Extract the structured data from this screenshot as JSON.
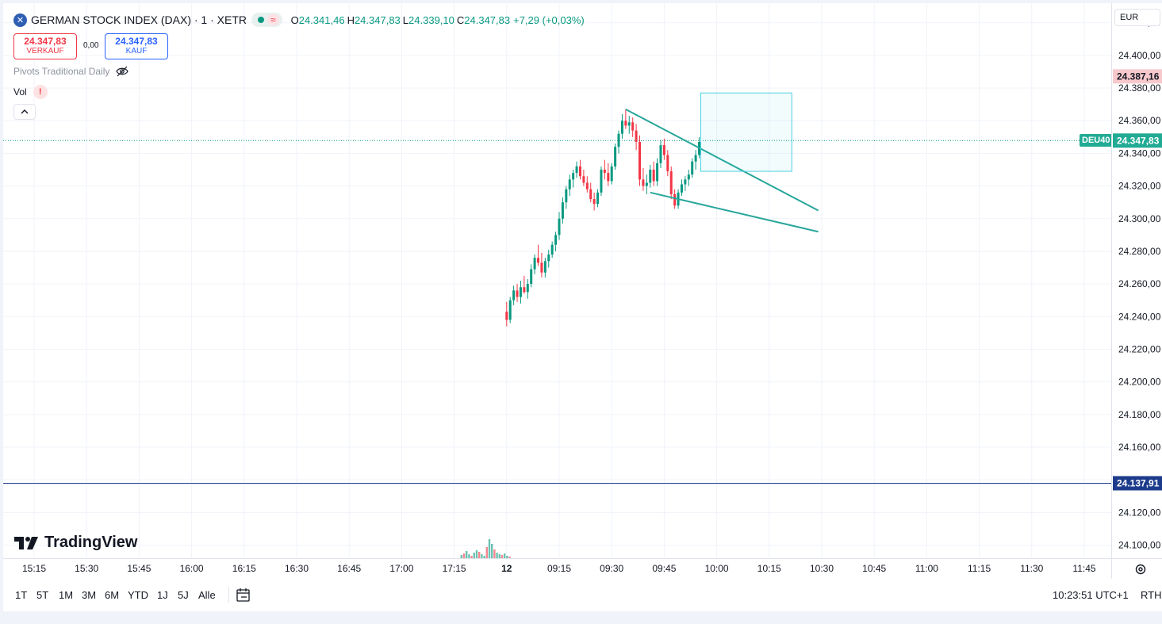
{
  "header": {
    "logo_glyph": "✕",
    "symbol_title": "GERMAN STOCK INDEX (DAX) · 1 · XETR",
    "status_symbol": "≈",
    "ohlc": {
      "o_label": "O",
      "o": "24.341,46",
      "h_label": "H",
      "h": "24.347,83",
      "l_label": "L",
      "l": "24.339,10",
      "c_label": "C",
      "c": "24.347,83",
      "change": "+7,29 (+0,03%)"
    }
  },
  "trade": {
    "sell_price": "24.347,83",
    "sell_label": "VERKAUF",
    "spread": "0,00",
    "buy_price": "24.347,83",
    "buy_label": "KAUF"
  },
  "indicators": {
    "pivots": "Pivots Traditional Daily",
    "vol": "Vol",
    "warning": "!"
  },
  "watermark": "TradingView",
  "currency": "EUR",
  "symbol_tag": "DEU40",
  "price_scale": {
    "ticks": [
      {
        "value": 24420,
        "label": "24.420,00"
      },
      {
        "value": 24400,
        "label": "24.400,00"
      },
      {
        "value": 24380,
        "label": "24.380,00"
      },
      {
        "value": 24360,
        "label": "24.360,00"
      },
      {
        "value": 24340,
        "label": "24.340,00"
      },
      {
        "value": 24320,
        "label": "24.320,00"
      },
      {
        "value": 24300,
        "label": "24.300,00"
      },
      {
        "value": 24280,
        "label": "24.280,00"
      },
      {
        "value": 24260,
        "label": "24.260,00"
      },
      {
        "value": 24240,
        "label": "24.240,00"
      },
      {
        "value": 24220,
        "label": "24.220,00"
      },
      {
        "value": 24200,
        "label": "24.200,00"
      },
      {
        "value": 24180,
        "label": "24.180,00"
      },
      {
        "value": 24160,
        "label": "24.160,00"
      },
      {
        "value": 24140,
        "label": "24.140,00"
      },
      {
        "value": 24120,
        "label": "24.120,00"
      },
      {
        "value": 24100,
        "label": "24.100,00"
      }
    ],
    "tags": [
      {
        "value": 24387.16,
        "label": "24.387,16",
        "bg": "#f7c9cd",
        "fg": "#131722"
      },
      {
        "value": 24347.83,
        "label": "24.347,83",
        "bg": "#22ab94",
        "fg": "#ffffff"
      },
      {
        "value": 24137.91,
        "label": "24.137,91",
        "bg": "#1d3b8b",
        "fg": "#ffffff"
      }
    ]
  },
  "time_axis": [
    {
      "index": 0,
      "label": "15:15"
    },
    {
      "index": 1,
      "label": "15:30"
    },
    {
      "index": 2,
      "label": "15:45"
    },
    {
      "index": 3,
      "label": "16:00"
    },
    {
      "index": 4,
      "label": "16:15"
    },
    {
      "index": 5,
      "label": "16:30"
    },
    {
      "index": 6,
      "label": "16:45"
    },
    {
      "index": 7,
      "label": "17:00"
    },
    {
      "index": 8,
      "label": "17:15"
    },
    {
      "index": 9,
      "label": "12"
    },
    {
      "index": 10,
      "label": "09:15"
    },
    {
      "index": 11,
      "label": "09:30"
    },
    {
      "index": 12,
      "label": "09:45"
    },
    {
      "index": 13,
      "label": "10:00"
    },
    {
      "index": 14,
      "label": "10:15"
    },
    {
      "index": 15,
      "label": "10:30"
    },
    {
      "index": 16,
      "label": "10:45"
    },
    {
      "index": 17,
      "label": "11:00"
    },
    {
      "index": 18,
      "label": "11:15"
    },
    {
      "index": 19,
      "label": "11:30"
    },
    {
      "index": 20,
      "label": "11:45"
    }
  ],
  "bottom": {
    "ranges": [
      "1T",
      "5T",
      "1M",
      "3M",
      "6M",
      "YTD",
      "1J",
      "5J",
      "Alle"
    ],
    "clock": "10:23:51 UTC+1",
    "session": "RTH"
  },
  "colors": {
    "up": "#089981",
    "down": "#f23645",
    "drawing": "#26a69a",
    "pivot_line": "#1d3b8b",
    "grid": "#f0f3fa"
  },
  "chart_data": {
    "type": "candlestick",
    "x_unit": "minutes",
    "y_range": [
      24092,
      24432
    ],
    "pivot_level": 24137.91,
    "last_price": 24347.83,
    "candles": [
      {
        "t": "09:00",
        "o": 24243,
        "h": 24249,
        "l": 24234,
        "c": 24238
      },
      {
        "t": "09:01",
        "o": 24238,
        "h": 24252,
        "l": 24236,
        "c": 24250
      },
      {
        "t": "09:02",
        "o": 24250,
        "h": 24259,
        "l": 24247,
        "c": 24256
      },
      {
        "t": "09:03",
        "o": 24256,
        "h": 24260,
        "l": 24249,
        "c": 24252
      },
      {
        "t": "09:04",
        "o": 24252,
        "h": 24262,
        "l": 24248,
        "c": 24258
      },
      {
        "t": "09:05",
        "o": 24258,
        "h": 24265,
        "l": 24254,
        "c": 24255
      },
      {
        "t": "09:06",
        "o": 24255,
        "h": 24263,
        "l": 24251,
        "c": 24260
      },
      {
        "t": "09:07",
        "o": 24260,
        "h": 24272,
        "l": 24258,
        "c": 24269
      },
      {
        "t": "09:08",
        "o": 24269,
        "h": 24278,
        "l": 24266,
        "c": 24276
      },
      {
        "t": "09:09",
        "o": 24276,
        "h": 24284,
        "l": 24271,
        "c": 24273
      },
      {
        "t": "09:10",
        "o": 24273,
        "h": 24279,
        "l": 24264,
        "c": 24267
      },
      {
        "t": "09:11",
        "o": 24267,
        "h": 24276,
        "l": 24264,
        "c": 24274
      },
      {
        "t": "09:12",
        "o": 24274,
        "h": 24281,
        "l": 24270,
        "c": 24278
      },
      {
        "t": "09:13",
        "o": 24278,
        "h": 24286,
        "l": 24276,
        "c": 24284
      },
      {
        "t": "09:14",
        "o": 24284,
        "h": 24292,
        "l": 24280,
        "c": 24290
      },
      {
        "t": "09:15",
        "o": 24290,
        "h": 24304,
        "l": 24287,
        "c": 24300
      },
      {
        "t": "09:16",
        "o": 24300,
        "h": 24313,
        "l": 24297,
        "c": 24310
      },
      {
        "t": "09:17",
        "o": 24310,
        "h": 24320,
        "l": 24306,
        "c": 24318
      },
      {
        "t": "09:18",
        "o": 24318,
        "h": 24327,
        "l": 24314,
        "c": 24324
      },
      {
        "t": "09:19",
        "o": 24324,
        "h": 24330,
        "l": 24319,
        "c": 24328
      },
      {
        "t": "09:20",
        "o": 24328,
        "h": 24335,
        "l": 24325,
        "c": 24332
      },
      {
        "t": "09:21",
        "o": 24332,
        "h": 24336,
        "l": 24324,
        "c": 24326
      },
      {
        "t": "09:22",
        "o": 24326,
        "h": 24330,
        "l": 24320,
        "c": 24322
      },
      {
        "t": "09:23",
        "o": 24322,
        "h": 24326,
        "l": 24316,
        "c": 24318
      },
      {
        "t": "09:24",
        "o": 24318,
        "h": 24322,
        "l": 24310,
        "c": 24312
      },
      {
        "t": "09:25",
        "o": 24312,
        "h": 24316,
        "l": 24305,
        "c": 24309
      },
      {
        "t": "09:26",
        "o": 24309,
        "h": 24318,
        "l": 24307,
        "c": 24316
      },
      {
        "t": "09:27",
        "o": 24316,
        "h": 24332,
        "l": 24314,
        "c": 24330
      },
      {
        "t": "09:28",
        "o": 24330,
        "h": 24336,
        "l": 24324,
        "c": 24328
      },
      {
        "t": "09:29",
        "o": 24328,
        "h": 24334,
        "l": 24320,
        "c": 24323
      },
      {
        "t": "09:30",
        "o": 24323,
        "h": 24334,
        "l": 24321,
        "c": 24332
      },
      {
        "t": "09:31",
        "o": 24332,
        "h": 24346,
        "l": 24330,
        "c": 24344
      },
      {
        "t": "09:32",
        "o": 24344,
        "h": 24354,
        "l": 24340,
        "c": 24352
      },
      {
        "t": "09:33",
        "o": 24352,
        "h": 24364,
        "l": 24349,
        "c": 24360
      },
      {
        "t": "09:34",
        "o": 24360,
        "h": 24367,
        "l": 24355,
        "c": 24357
      },
      {
        "t": "09:35",
        "o": 24357,
        "h": 24363,
        "l": 24352,
        "c": 24359
      },
      {
        "t": "09:36",
        "o": 24359,
        "h": 24362,
        "l": 24350,
        "c": 24354
      },
      {
        "t": "09:37",
        "o": 24354,
        "h": 24358,
        "l": 24342,
        "c": 24347
      },
      {
        "t": "09:38",
        "o": 24347,
        "h": 24351,
        "l": 24320,
        "c": 24324
      },
      {
        "t": "09:39",
        "o": 24324,
        "h": 24331,
        "l": 24317,
        "c": 24320
      },
      {
        "t": "09:40",
        "o": 24320,
        "h": 24327,
        "l": 24315,
        "c": 24322
      },
      {
        "t": "09:41",
        "o": 24322,
        "h": 24333,
        "l": 24319,
        "c": 24330
      },
      {
        "t": "09:42",
        "o": 24330,
        "h": 24335,
        "l": 24320,
        "c": 24323
      },
      {
        "t": "09:43",
        "o": 24323,
        "h": 24337,
        "l": 24320,
        "c": 24334
      },
      {
        "t": "09:44",
        "o": 24334,
        "h": 24348,
        "l": 24331,
        "c": 24345
      },
      {
        "t": "09:45",
        "o": 24345,
        "h": 24349,
        "l": 24336,
        "c": 24339
      },
      {
        "t": "09:46",
        "o": 24339,
        "h": 24342,
        "l": 24326,
        "c": 24329
      },
      {
        "t": "09:47",
        "o": 24329,
        "h": 24332,
        "l": 24312,
        "c": 24315
      },
      {
        "t": "09:48",
        "o": 24315,
        "h": 24318,
        "l": 24306,
        "c": 24308
      },
      {
        "t": "09:49",
        "o": 24308,
        "h": 24318,
        "l": 24306,
        "c": 24316
      },
      {
        "t": "09:50",
        "o": 24316,
        "h": 24324,
        "l": 24314,
        "c": 24321
      },
      {
        "t": "09:51",
        "o": 24321,
        "h": 24326,
        "l": 24317,
        "c": 24324
      },
      {
        "t": "09:52",
        "o": 24324,
        "h": 24330,
        "l": 24320,
        "c": 24327
      },
      {
        "t": "09:53",
        "o": 24327,
        "h": 24337,
        "l": 24325,
        "c": 24335
      },
      {
        "t": "09:54",
        "o": 24335,
        "h": 24342,
        "l": 24330,
        "c": 24339
      },
      {
        "t": "09:55",
        "o": 24339,
        "h": 24350,
        "l": 24337,
        "c": 24347
      }
    ]
  }
}
